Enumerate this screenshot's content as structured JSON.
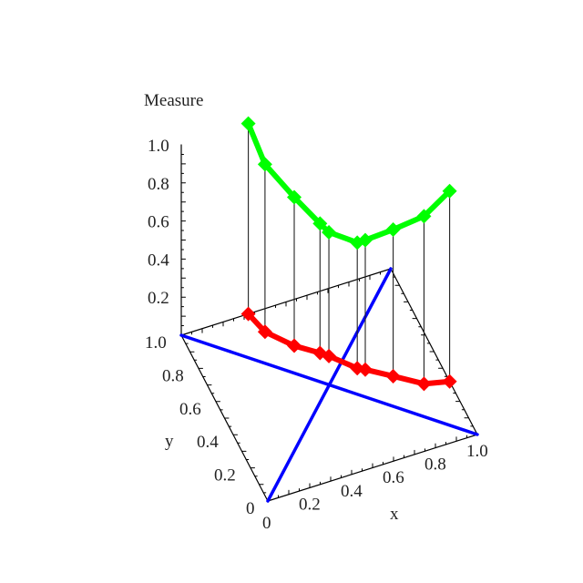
{
  "chart_data": {
    "type": "line",
    "projection": "3d",
    "zlabel": "Measure",
    "xlabel": "x",
    "ylabel": "y",
    "xlim": [
      0,
      1
    ],
    "ylim": [
      0,
      1
    ],
    "zlim": [
      0,
      1
    ],
    "x_ticks": [
      "0",
      "0.2",
      "0.4",
      "0.6",
      "0.8",
      "1.0"
    ],
    "y_ticks": [
      "0",
      "0.2",
      "0.4",
      "0.6",
      "0.8",
      "1.0"
    ],
    "z_ticks": [
      "0.2",
      "0.4",
      "0.6",
      "0.8",
      "1.0"
    ],
    "points": [
      {
        "x": 0.32,
        "y": 1.0,
        "z": 1.0
      },
      {
        "x": 0.35,
        "y": 0.88,
        "z": 0.88
      },
      {
        "x": 0.44,
        "y": 0.76,
        "z": 0.78
      },
      {
        "x": 0.53,
        "y": 0.68,
        "z": 0.68
      },
      {
        "x": 0.56,
        "y": 0.65,
        "z": 0.65
      },
      {
        "x": 0.65,
        "y": 0.54,
        "z": 0.66
      },
      {
        "x": 0.68,
        "y": 0.52,
        "z": 0.68
      },
      {
        "x": 0.78,
        "y": 0.44,
        "z": 0.77
      },
      {
        "x": 0.89,
        "y": 0.35,
        "z": 0.88
      },
      {
        "x": 1.0,
        "y": 0.32,
        "z": 1.0
      }
    ],
    "colors": {
      "curve_3d": "#00ff00",
      "floor_projection": "#ff0000",
      "diagonals": "#0000ff",
      "axes": "#000000"
    },
    "grid": false
  }
}
